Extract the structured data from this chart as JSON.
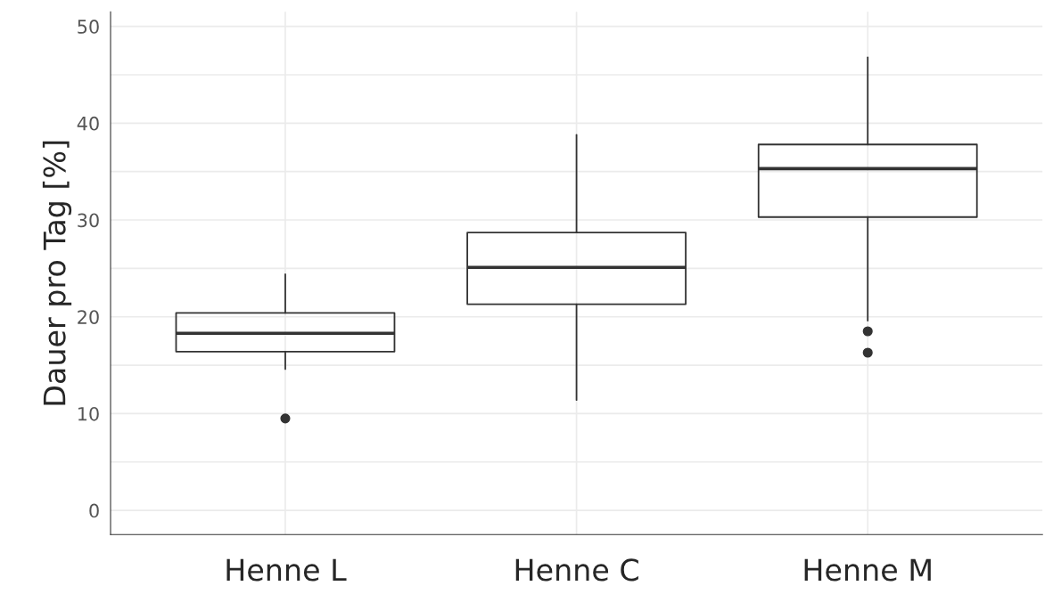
{
  "chart_data": {
    "type": "box",
    "ylabel": "Dauer pro Tag [%]",
    "categories": [
      "Henne L",
      "Henne C",
      "Henne M"
    ],
    "boxes": [
      {
        "low": 14.6,
        "q1": 16.4,
        "median": 18.3,
        "q3": 20.4,
        "high": 24.4,
        "outliers": [
          9.5
        ]
      },
      {
        "low": 11.4,
        "q1": 21.3,
        "median": 25.1,
        "q3": 28.7,
        "high": 38.8
      },
      {
        "low": 19.6,
        "q1": 30.3,
        "median": 35.3,
        "q3": 37.8,
        "high": 46.8,
        "outliers": [
          18.5,
          16.3
        ]
      }
    ],
    "color": "#333333",
    "ylim": [
      -2.5,
      51.5
    ],
    "yticks": [
      0,
      10,
      20,
      30,
      40,
      50
    ],
    "grid": true
  }
}
